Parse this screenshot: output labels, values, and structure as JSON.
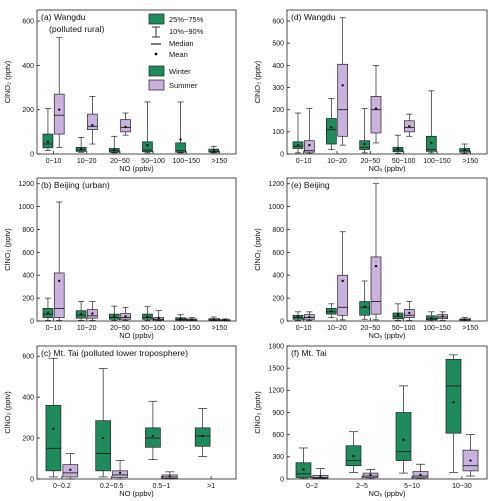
{
  "colors": {
    "winter": "#1f8a5b",
    "summer": "#c9b3dd",
    "line": "#222222"
  },
  "legend": {
    "box": "25%~75%",
    "whisker": "10%~90%",
    "median": "Median",
    "mean": "Mean",
    "winter": "Winter",
    "summer": "Summer"
  },
  "chart_data": [
    {
      "type": "box",
      "title": "(a) Wangdu",
      "subtitle": "(polluted rural)",
      "xlabel": "NO (ppbv)",
      "ylabel": "ClNO₂ (pptv)",
      "ylim": [
        0,
        650
      ],
      "yticks": [
        0,
        200,
        400,
        600
      ],
      "categories": [
        "0~10",
        "10~20",
        "20~50",
        "50~100",
        "100~150",
        ">150"
      ],
      "series": [
        {
          "name": "Winter",
          "boxes": [
            {
              "w_lo": 15,
              "q1": 28,
              "med": 45,
              "q3": 90,
              "w_hi": 205,
              "mean": 55
            },
            {
              "w_lo": 8,
              "q1": 12,
              "med": 18,
              "q3": 30,
              "w_hi": 75,
              "mean": 22
            },
            {
              "w_lo": 5,
              "q1": 8,
              "med": 15,
              "q3": 25,
              "w_hi": 80,
              "mean": 18
            },
            {
              "w_lo": 5,
              "q1": 10,
              "med": 18,
              "q3": 55,
              "w_hi": 235,
              "mean": 40
            },
            {
              "w_lo": 5,
              "q1": 8,
              "med": 15,
              "q3": 50,
              "w_hi": 235,
              "mean": 65
            },
            {
              "w_lo": 5,
              "q1": 8,
              "med": 12,
              "q3": 22,
              "w_hi": 35,
              "mean": 15
            }
          ]
        },
        {
          "name": "Summer",
          "boxes": [
            {
              "w_lo": 30,
              "q1": 90,
              "med": 175,
              "q3": 270,
              "w_hi": 525,
              "mean": 200
            },
            {
              "w_lo": 45,
              "q1": 110,
              "med": 125,
              "q3": 180,
              "w_hi": 260,
              "mean": 130
            },
            {
              "w_lo": 85,
              "q1": 100,
              "med": 120,
              "q3": 155,
              "w_hi": 185,
              "mean": 122
            },
            null,
            null,
            null
          ]
        }
      ]
    },
    {
      "type": "box",
      "title": "(b) Beijing (urban)",
      "xlabel": "NO (ppbv)",
      "ylabel": "ClNO₂ (pptv)",
      "ylim": [
        0,
        1250
      ],
      "yticks": [
        0,
        200,
        400,
        600,
        800,
        1000,
        1200
      ],
      "categories": [
        "0~10",
        "10~20",
        "20~50",
        "50~100",
        "100~150",
        ">150"
      ],
      "series": [
        {
          "name": "Winter",
          "boxes": [
            {
              "w_lo": 5,
              "q1": 30,
              "med": 60,
              "q3": 110,
              "w_hi": 200,
              "mean": 70
            },
            {
              "w_lo": 5,
              "q1": 25,
              "med": 50,
              "q3": 90,
              "w_hi": 170,
              "mean": 60
            },
            {
              "w_lo": 5,
              "q1": 15,
              "med": 30,
              "q3": 60,
              "w_hi": 130,
              "mean": 40
            },
            {
              "w_lo": 5,
              "q1": 15,
              "med": 30,
              "q3": 60,
              "w_hi": 125,
              "mean": 35
            },
            {
              "w_lo": 3,
              "q1": 8,
              "med": 15,
              "q3": 28,
              "w_hi": 55,
              "mean": 18
            },
            {
              "w_lo": 3,
              "q1": 6,
              "med": 10,
              "q3": 20,
              "w_hi": 35,
              "mean": 12
            }
          ]
        },
        {
          "name": "Summer",
          "boxes": [
            {
              "w_lo": 5,
              "q1": 30,
              "med": 110,
              "q3": 420,
              "w_hi": 1040,
              "mean": 350
            },
            {
              "w_lo": 5,
              "q1": 25,
              "med": 45,
              "q3": 100,
              "w_hi": 170,
              "mean": 65
            },
            {
              "w_lo": 5,
              "q1": 15,
              "med": 30,
              "q3": 65,
              "w_hi": 120,
              "mean": 40
            },
            {
              "w_lo": 3,
              "q1": 8,
              "med": 15,
              "q3": 30,
              "w_hi": 90,
              "mean": 25
            },
            {
              "w_lo": 3,
              "q1": 5,
              "med": 10,
              "q3": 18,
              "w_hi": 30,
              "mean": 12
            },
            {
              "w_lo": 2,
              "q1": 4,
              "med": 8,
              "q3": 12,
              "w_hi": 18,
              "mean": 9
            }
          ]
        }
      ]
    },
    {
      "type": "box",
      "title": "(c) Mt. Tai (polluted lower troposphere)",
      "xlabel": "NO (ppbv)",
      "ylabel": "ClNO₂ (pptv)",
      "ylim": [
        0,
        650
      ],
      "yticks": [
        0,
        200,
        400,
        600
      ],
      "categories": [
        "0~0.2",
        "0.2~0.5",
        "0.5~1",
        ">1"
      ],
      "series": [
        {
          "name": "Winter",
          "boxes": [
            {
              "w_lo": 10,
              "q1": 40,
              "med": 150,
              "q3": 360,
              "w_hi": 590,
              "mean": 245
            },
            {
              "w_lo": 10,
              "q1": 40,
              "med": 125,
              "q3": 285,
              "w_hi": 540,
              "mean": 200
            },
            {
              "w_lo": 95,
              "q1": 155,
              "med": 200,
              "q3": 250,
              "w_hi": 380,
              "mean": 210
            },
            {
              "w_lo": 110,
              "q1": 160,
              "med": 210,
              "q3": 250,
              "w_hi": 345,
              "mean": 210
            }
          ]
        },
        {
          "name": "Summer",
          "boxes": [
            {
              "w_lo": 0,
              "q1": 10,
              "med": 30,
              "q3": 70,
              "w_hi": 125,
              "mean": 45
            },
            {
              "w_lo": 0,
              "q1": 8,
              "med": 20,
              "q3": 40,
              "w_hi": 90,
              "mean": 30
            },
            {
              "w_lo": 0,
              "q1": 3,
              "med": 10,
              "q3": 20,
              "w_hi": 35,
              "mean": 12
            },
            null
          ]
        }
      ]
    },
    {
      "type": "box",
      "title": "(d) Wangdu",
      "xlabel": "NOₓ (ppbv)",
      "ylabel": "ClNO₂ (pptv)",
      "ylim": [
        0,
        650
      ],
      "yticks": [
        0,
        100,
        200,
        300,
        400,
        500,
        600
      ],
      "categories": [
        "0~10",
        "10~20",
        "20~50",
        "50~100",
        "100~150",
        ">150"
      ],
      "series": [
        {
          "name": "Winter",
          "boxes": [
            {
              "w_lo": 5,
              "q1": 25,
              "med": 35,
              "q3": 55,
              "w_hi": 185,
              "mean": 40
            },
            {
              "w_lo": 20,
              "q1": 45,
              "med": 110,
              "q3": 160,
              "w_hi": 250,
              "mean": 120
            },
            {
              "w_lo": 5,
              "q1": 20,
              "med": 30,
              "q3": 60,
              "w_hi": 205,
              "mean": 45
            },
            {
              "w_lo": 3,
              "q1": 10,
              "med": 18,
              "q3": 30,
              "w_hi": 85,
              "mean": 22
            },
            {
              "w_lo": 5,
              "q1": 12,
              "med": 20,
              "q3": 80,
              "w_hi": 285,
              "mean": 50
            },
            {
              "w_lo": 3,
              "q1": 8,
              "med": 15,
              "q3": 25,
              "w_hi": 45,
              "mean": 18
            }
          ]
        },
        {
          "name": "Summer",
          "boxes": [
            {
              "w_lo": 2,
              "q1": 8,
              "med": 15,
              "q3": 60,
              "w_hi": 205,
              "mean": 40
            },
            {
              "w_lo": 40,
              "q1": 80,
              "med": 200,
              "q3": 405,
              "w_hi": 615,
              "mean": 310
            },
            {
              "w_lo": 50,
              "q1": 95,
              "med": 200,
              "q3": 260,
              "w_hi": 400,
              "mean": 205
            },
            {
              "w_lo": 80,
              "q1": 100,
              "med": 120,
              "q3": 150,
              "w_hi": 180,
              "mean": 125
            },
            null,
            null
          ]
        }
      ]
    },
    {
      "type": "box",
      "title": "(e) Beijing",
      "xlabel": "NOₓ (ppbv)",
      "ylabel": "ClNO₂ (pptv)",
      "ylim": [
        0,
        1250
      ],
      "yticks": [
        0,
        200,
        400,
        600,
        800,
        1000,
        1200
      ],
      "categories": [
        "0~10",
        "10~20",
        "20~50",
        "50~100",
        "100~150",
        ">150"
      ],
      "series": [
        {
          "name": "Winter",
          "boxes": [
            {
              "w_lo": 5,
              "q1": 15,
              "med": 30,
              "q3": 50,
              "w_hi": 80,
              "mean": 35
            },
            {
              "w_lo": 30,
              "q1": 60,
              "med": 80,
              "q3": 110,
              "w_hi": 150,
              "mean": 85
            },
            {
              "w_lo": 15,
              "q1": 50,
              "med": 120,
              "q3": 170,
              "w_hi": 350,
              "mean": 125
            },
            {
              "w_lo": 5,
              "q1": 20,
              "med": 40,
              "q3": 70,
              "w_hi": 150,
              "mean": 55
            },
            {
              "w_lo": 3,
              "q1": 10,
              "med": 20,
              "q3": 45,
              "w_hi": 80,
              "mean": 25
            },
            {
              "w_lo": 2,
              "q1": 8,
              "med": 12,
              "q3": 18,
              "w_hi": 30,
              "mean": 13
            }
          ]
        },
        {
          "name": "Summer",
          "boxes": [
            {
              "w_lo": 5,
              "q1": 15,
              "med": 30,
              "q3": 55,
              "w_hi": 80,
              "mean": 35
            },
            {
              "w_lo": 10,
              "q1": 50,
              "med": 120,
              "q3": 400,
              "w_hi": 780,
              "mean": 350
            },
            {
              "w_lo": 10,
              "q1": 60,
              "med": 170,
              "q3": 560,
              "w_hi": 1200,
              "mean": 480
            },
            {
              "w_lo": 5,
              "q1": 30,
              "med": 50,
              "q3": 100,
              "w_hi": 170,
              "mean": 70
            },
            {
              "w_lo": 5,
              "q1": 20,
              "med": 35,
              "q3": 55,
              "w_hi": 80,
              "mean": 40
            },
            null
          ]
        }
      ]
    },
    {
      "type": "box",
      "title": "(f) Mt. Tai",
      "xlabel": "NOₓ (ppbv)",
      "ylabel": "ClNO₂ (pptv)",
      "ylim": [
        0,
        1800
      ],
      "yticks": [
        0,
        300,
        600,
        900,
        1200,
        1500,
        1800
      ],
      "categories": [
        "0~2",
        "2~5",
        "5~10",
        "10~30"
      ],
      "series": [
        {
          "name": "Winter",
          "boxes": [
            {
              "w_lo": 5,
              "q1": 20,
              "med": 70,
              "q3": 220,
              "w_hi": 420,
              "mean": 130
            },
            {
              "w_lo": 90,
              "q1": 180,
              "med": 250,
              "q3": 450,
              "w_hi": 640,
              "mean": 310
            },
            {
              "w_lo": 80,
              "q1": 250,
              "med": 370,
              "q3": 900,
              "w_hi": 1260,
              "mean": 530
            },
            {
              "w_lo": 90,
              "q1": 620,
              "med": 1260,
              "q3": 1620,
              "w_hi": 1680,
              "mean": 1040
            }
          ]
        },
        {
          "name": "Summer",
          "boxes": [
            {
              "w_lo": 5,
              "q1": 10,
              "med": 20,
              "q3": 50,
              "w_hi": 140,
              "mean": 35
            },
            {
              "w_lo": 5,
              "q1": 20,
              "med": 40,
              "q3": 80,
              "w_hi": 130,
              "mean": 55
            },
            {
              "w_lo": 5,
              "q1": 15,
              "med": 40,
              "q3": 100,
              "w_hi": 200,
              "mean": 55
            },
            {
              "w_lo": 40,
              "q1": 110,
              "med": 180,
              "q3": 390,
              "w_hi": 600,
              "mean": 250
            }
          ]
        }
      ]
    }
  ]
}
